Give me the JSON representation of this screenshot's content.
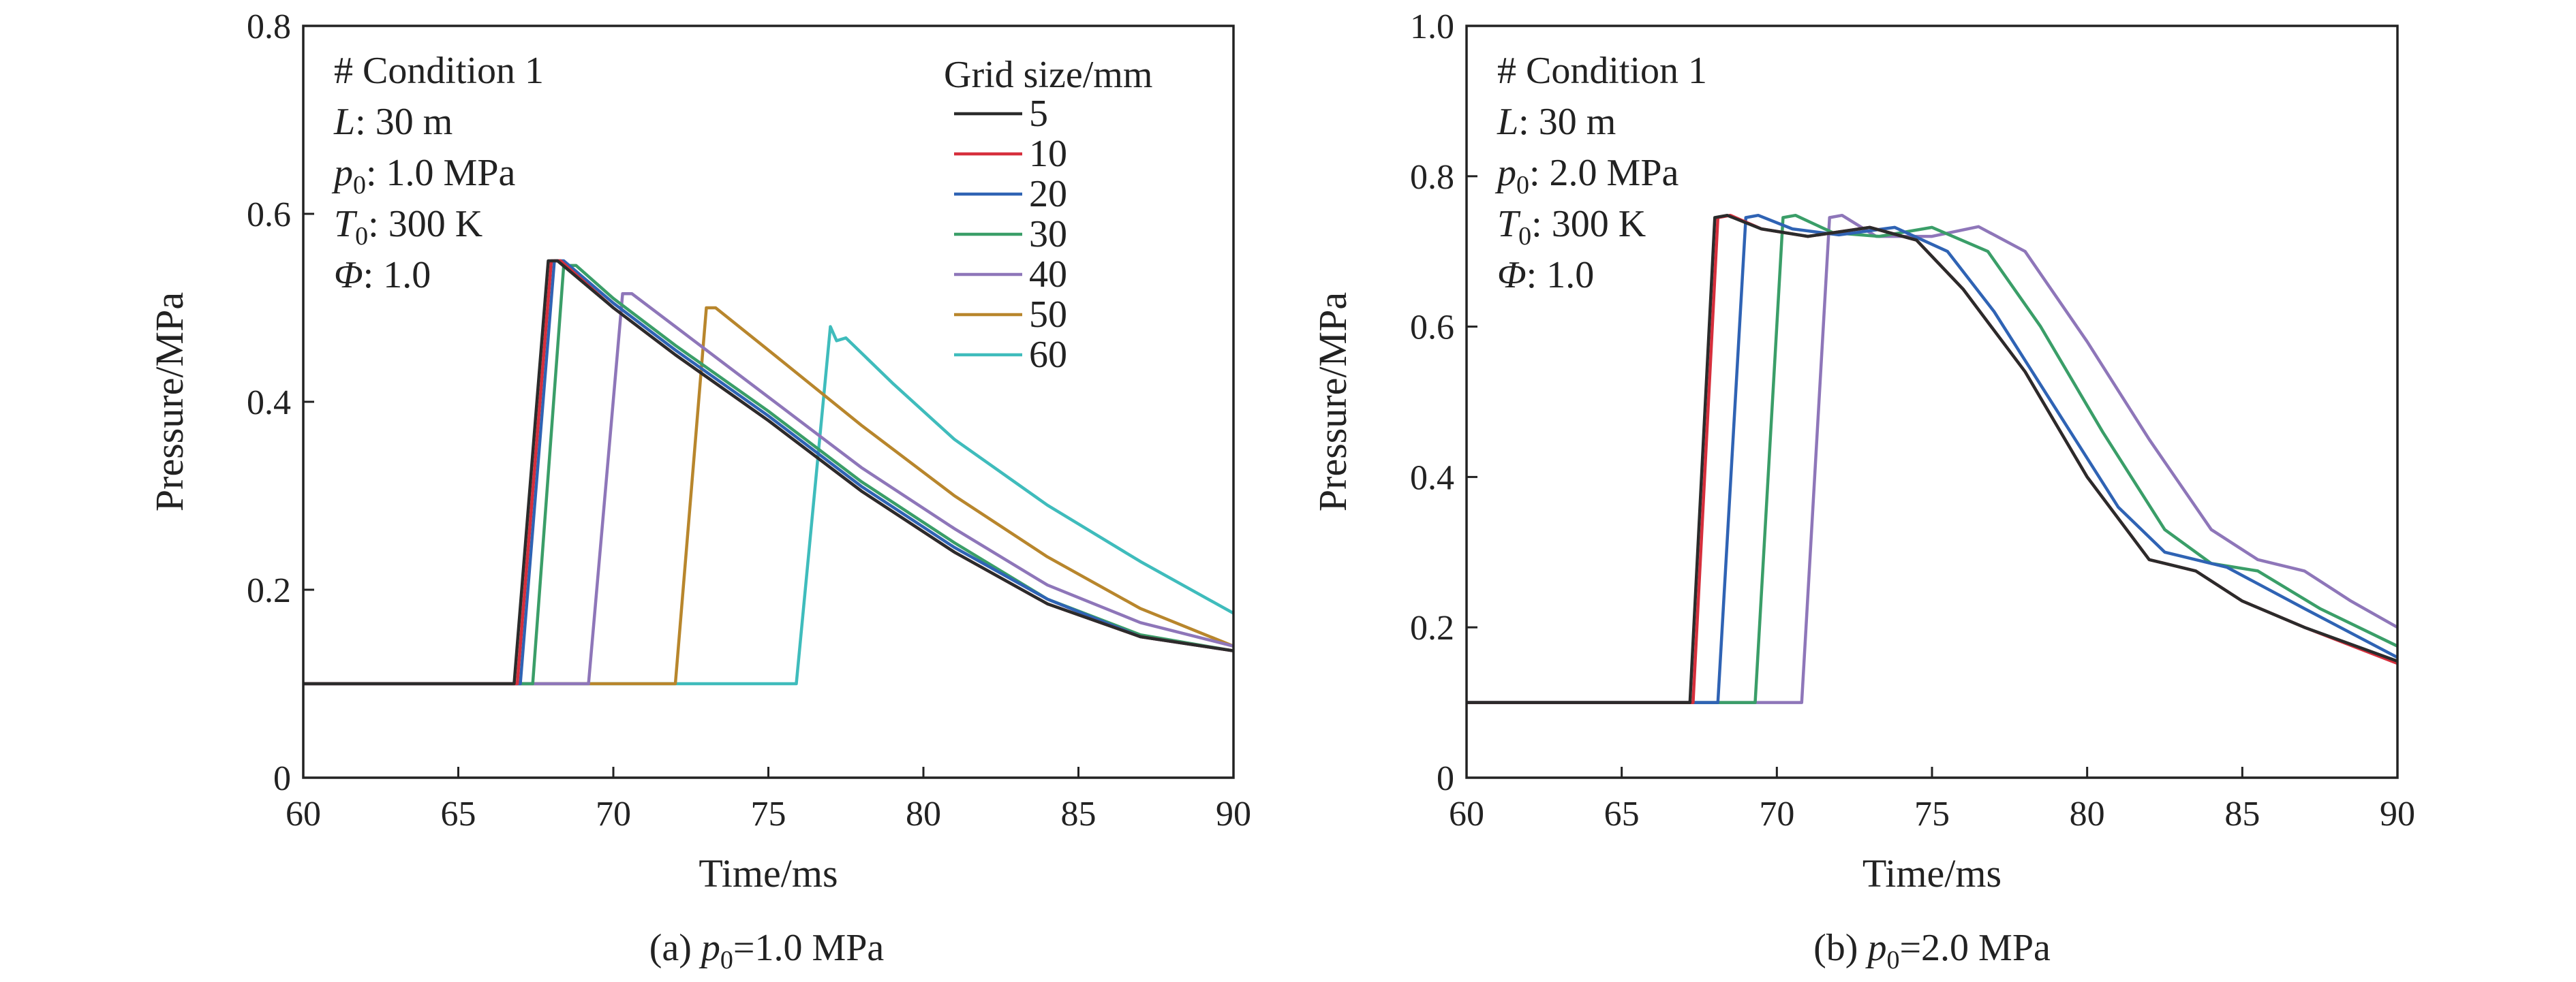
{
  "chart_data": [
    {
      "type": "line",
      "caption": "(a) p0=1.0 MPa",
      "caption_parts": {
        "prefix": "(a) ",
        "var": "p",
        "sub": "0",
        "rest": "=1.0 MPa"
      },
      "xlabel": "Time/ms",
      "ylabel": "Pressure/MPa",
      "xlim": [
        60,
        90
      ],
      "ylim": [
        0,
        0.8
      ],
      "xticks": [
        60,
        65,
        70,
        75,
        80,
        85,
        90
      ],
      "yticks": [
        0,
        0.2,
        0.4,
        0.6,
        0.8
      ],
      "ytick_labels": [
        "0",
        "0.2",
        "0.4",
        "0.6",
        "0.8"
      ],
      "grid": false,
      "legend_title": "Grid size/mm",
      "legend_position": "top-right",
      "annotations": [
        {
          "text": "# Condition 1"
        },
        {
          "var": "L",
          "rest": ": 30 m"
        },
        {
          "var": "p",
          "sub": "0",
          "rest": ": 1.0 MPa"
        },
        {
          "var": "T",
          "sub": "0",
          "rest": ": 300 K"
        },
        {
          "var": "Φ",
          "rest": ": 1.0"
        }
      ],
      "series": [
        {
          "name": "5",
          "color": "#2b2b2b",
          "x": [
            60,
            66.8,
            67.9,
            68.2,
            70,
            72,
            75,
            78,
            81,
            84,
            87,
            90
          ],
          "y": [
            0.1,
            0.1,
            0.55,
            0.55,
            0.5,
            0.45,
            0.38,
            0.305,
            0.24,
            0.185,
            0.15,
            0.135
          ]
        },
        {
          "name": "10",
          "color": "#d62f3c",
          "x": [
            60,
            66.9,
            68.0,
            68.3,
            70,
            72,
            75,
            78,
            81,
            84,
            87,
            90
          ],
          "y": [
            0.1,
            0.1,
            0.55,
            0.55,
            0.5,
            0.45,
            0.38,
            0.305,
            0.24,
            0.185,
            0.15,
            0.135
          ]
        },
        {
          "name": "20",
          "color": "#2f63b4",
          "x": [
            60,
            67.0,
            68.1,
            68.4,
            70,
            72,
            75,
            78,
            81,
            84,
            87,
            90
          ],
          "y": [
            0.1,
            0.1,
            0.55,
            0.55,
            0.505,
            0.455,
            0.385,
            0.31,
            0.245,
            0.19,
            0.15,
            0.135
          ]
        },
        {
          "name": "30",
          "color": "#3a9e68",
          "x": [
            60,
            67.4,
            68.4,
            68.8,
            70,
            72,
            75,
            78,
            81,
            84,
            87,
            90
          ],
          "y": [
            0.1,
            0.1,
            0.545,
            0.545,
            0.51,
            0.46,
            0.39,
            0.315,
            0.25,
            0.19,
            0.152,
            0.135
          ]
        },
        {
          "name": "40",
          "color": "#8e76b9",
          "x": [
            60,
            69.2,
            70.3,
            70.6,
            72,
            75,
            78,
            81,
            84,
            87,
            90
          ],
          "y": [
            0.1,
            0.1,
            0.515,
            0.515,
            0.48,
            0.405,
            0.33,
            0.265,
            0.205,
            0.165,
            0.14
          ]
        },
        {
          "name": "50",
          "color": "#b8862c",
          "x": [
            60,
            72.0,
            73.0,
            73.3,
            75,
            78,
            81,
            84,
            87,
            90
          ],
          "y": [
            0.1,
            0.1,
            0.5,
            0.5,
            0.455,
            0.375,
            0.3,
            0.235,
            0.18,
            0.14
          ]
        },
        {
          "name": "60",
          "color": "#3fbcbc",
          "x": [
            60,
            75.9,
            77.0,
            77.2,
            77.5,
            79,
            81,
            84,
            87,
            90
          ],
          "y": [
            0.1,
            0.1,
            0.48,
            0.465,
            0.468,
            0.42,
            0.36,
            0.29,
            0.23,
            0.175
          ]
        }
      ]
    },
    {
      "type": "line",
      "caption": "(b) p0=2.0 MPa",
      "caption_parts": {
        "prefix": "(b) ",
        "var": "p",
        "sub": "0",
        "rest": "=2.0 MPa"
      },
      "xlabel": "Time/ms",
      "ylabel": "Pressure/MPa",
      "xlim": [
        60,
        90
      ],
      "ylim": [
        0,
        1.0
      ],
      "xticks": [
        60,
        65,
        70,
        75,
        80,
        85,
        90
      ],
      "yticks": [
        0,
        0.2,
        0.4,
        0.6,
        0.8,
        1.0
      ],
      "ytick_labels": [
        "0",
        "0.2",
        "0.4",
        "0.6",
        "0.8",
        "1.0"
      ],
      "grid": false,
      "annotations": [
        {
          "text": "# Condition 1"
        },
        {
          "var": "L",
          "rest": ": 30 m"
        },
        {
          "var": "p",
          "sub": "0",
          "rest": ": 2.0 MPa"
        },
        {
          "var": "T",
          "sub": "0",
          "rest": ": 300 K"
        },
        {
          "var": "Φ",
          "rest": ": 1.0"
        }
      ],
      "series": [
        {
          "name": "5",
          "color": "#2b2b2b",
          "x": [
            60,
            67.2,
            68.0,
            68.4,
            69.5,
            71,
            73,
            74.5,
            76,
            78,
            80,
            82,
            83.5,
            85,
            87,
            90
          ],
          "y": [
            0.1,
            0.1,
            0.745,
            0.748,
            0.73,
            0.72,
            0.732,
            0.715,
            0.65,
            0.54,
            0.4,
            0.29,
            0.275,
            0.235,
            0.2,
            0.155
          ]
        },
        {
          "name": "10",
          "color": "#d62f3c",
          "x": [
            60,
            67.3,
            68.1,
            68.5,
            69.5,
            71,
            73,
            74.5,
            76,
            78,
            80,
            82,
            83.5,
            85,
            87,
            90
          ],
          "y": [
            0.1,
            0.1,
            0.745,
            0.748,
            0.73,
            0.72,
            0.732,
            0.715,
            0.65,
            0.54,
            0.4,
            0.29,
            0.275,
            0.235,
            0.2,
            0.152
          ]
        },
        {
          "name": "20",
          "color": "#2f63b4",
          "x": [
            60,
            68.1,
            69.0,
            69.4,
            70.5,
            72,
            73.8,
            75.5,
            77,
            79,
            81,
            82.5,
            84.5,
            87,
            90
          ],
          "y": [
            0.1,
            0.1,
            0.745,
            0.748,
            0.73,
            0.722,
            0.732,
            0.7,
            0.62,
            0.49,
            0.36,
            0.3,
            0.28,
            0.225,
            0.16
          ]
        },
        {
          "name": "30",
          "color": "#3a9e68",
          "x": [
            60,
            69.3,
            70.2,
            70.6,
            71.8,
            73.3,
            75,
            76.8,
            78.5,
            80.5,
            82.5,
            84,
            85.5,
            87.5,
            90
          ],
          "y": [
            0.1,
            0.1,
            0.745,
            0.748,
            0.725,
            0.72,
            0.732,
            0.7,
            0.6,
            0.46,
            0.33,
            0.285,
            0.275,
            0.225,
            0.175
          ]
        },
        {
          "name": "40",
          "color": "#8e76b9",
          "x": [
            60,
            70.8,
            71.7,
            72.1,
            73.2,
            75,
            76.5,
            78,
            80,
            82,
            84,
            85.5,
            87,
            88.5,
            90
          ],
          "y": [
            0.1,
            0.1,
            0.745,
            0.748,
            0.72,
            0.72,
            0.733,
            0.7,
            0.58,
            0.45,
            0.33,
            0.29,
            0.275,
            0.235,
            0.2
          ]
        }
      ]
    }
  ]
}
